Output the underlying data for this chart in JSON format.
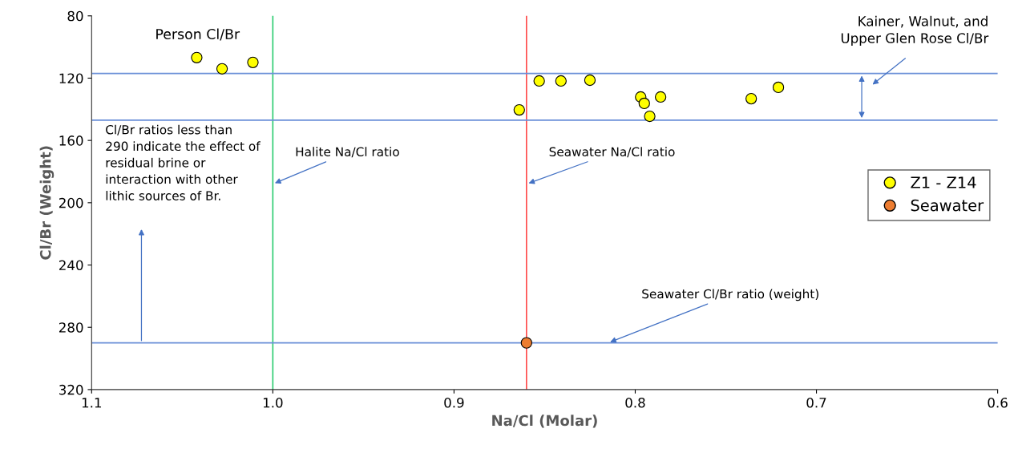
{
  "chart_data": {
    "type": "scatter",
    "xlabel": "Na/Cl (Molar)",
    "ylabel": "Cl/Br (Weight)",
    "xlim": [
      1.1,
      0.6
    ],
    "xticks": [
      {
        "value": 1.1,
        "label": "1.1"
      },
      {
        "value": 1.0,
        "label": "1.0"
      },
      {
        "value": 0.9,
        "label": "0.9"
      },
      {
        "value": 0.8,
        "label": "0.8"
      },
      {
        "value": 0.7,
        "label": "0.7"
      },
      {
        "value": 0.6,
        "label": "0.6"
      }
    ],
    "ylim": [
      320,
      80
    ],
    "yticks": [
      80,
      120,
      160,
      200,
      240,
      280,
      320
    ],
    "series": [
      {
        "name": "Z1 - Z14",
        "color": "#ffff00",
        "x": [
          1.042,
          1.028,
          1.011,
          0.864,
          0.853,
          0.841,
          0.825,
          0.797,
          0.795,
          0.786,
          0.792,
          0.736,
          0.721
        ],
        "values": [
          106.8,
          114,
          109.9,
          140.4,
          121.8,
          121.8,
          121.3,
          132.1,
          136.2,
          132.1,
          144.5,
          133.2,
          125.9
        ]
      },
      {
        "name": "Seawater",
        "color": "#ed7d31",
        "x": [
          0.86
        ],
        "values": [
          290
        ]
      }
    ],
    "marker": "circle",
    "grid": false,
    "legend": "right",
    "ref_lines": [
      {
        "axis": "x",
        "value": 1.0,
        "label": "Halite Na/Cl ratio",
        "color": "#2ecc71"
      },
      {
        "axis": "x",
        "value": 0.86,
        "label": "Seawater Na/Cl ratio",
        "color": "#ff4d4d"
      },
      {
        "axis": "y",
        "value": 290,
        "label": "Seawater Cl/Br ratio (weight)",
        "color": "#6a8fd8"
      },
      {
        "axis": "y",
        "value": 117,
        "color": "#6a8fd8"
      },
      {
        "axis": "y",
        "value": 147,
        "color": "#6a8fd8"
      }
    ],
    "annotations": [
      "Person Cl/Br",
      "Cl/Br ratios less than\n290 indicate the effect of\nresidual brine or\ninteraction with other\nlithic sources of Br.",
      "Kainer, Walnut, and\nUpper Glen Rose Cl/Br"
    ]
  }
}
